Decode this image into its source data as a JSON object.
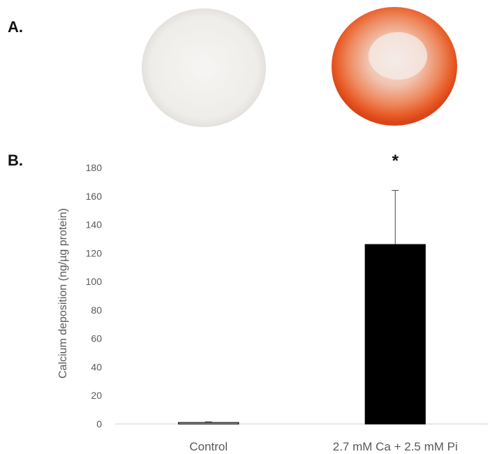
{
  "panels": {
    "a_label": "A.",
    "b_label": "B."
  },
  "wells": [
    {
      "name": "control-well",
      "stain_color": "#f2f0ee"
    },
    {
      "name": "calcified-well",
      "stain_color": "#e8521f"
    }
  ],
  "chart_data": {
    "type": "bar",
    "categories": [
      "Control",
      "2.7 mM Ca + 2.5 mM Pi"
    ],
    "values": [
      1,
      126
    ],
    "error_upper": [
      1.5,
      164
    ],
    "bar_colors": [
      "#ffffff",
      "#000000"
    ],
    "ylabel": "Calcium deposition (ng/µg protein)",
    "xlabel": "",
    "ylim": [
      0,
      180
    ],
    "yticks": [
      0,
      20,
      40,
      60,
      80,
      100,
      120,
      140,
      160,
      180
    ],
    "significance": [
      "",
      "*"
    ],
    "grid": false
  }
}
